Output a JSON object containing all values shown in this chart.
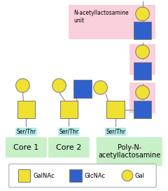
{
  "background": "#ffffff",
  "pink_bg": "#f9d0dc",
  "green_bg": "#c8f0c8",
  "serthr_bg": "#b0e8e8",
  "galnac_color": "#f0e030",
  "glcnac_color": "#3060cc",
  "gal_color": "#f0e030",
  "line_color": "#999999",
  "legend": {
    "galnac_label": "GalNAc",
    "glcnac_label": "GlcNAc",
    "gal_label": "Gal"
  },
  "core1_label": "Core 1",
  "core2_label": "Core 2",
  "poly_label": "Poly-N-\nacetyllactosamine",
  "nacetyl_label": "N-acetyllactosamine\nunit",
  "serthr_label": "Ser/Thr"
}
